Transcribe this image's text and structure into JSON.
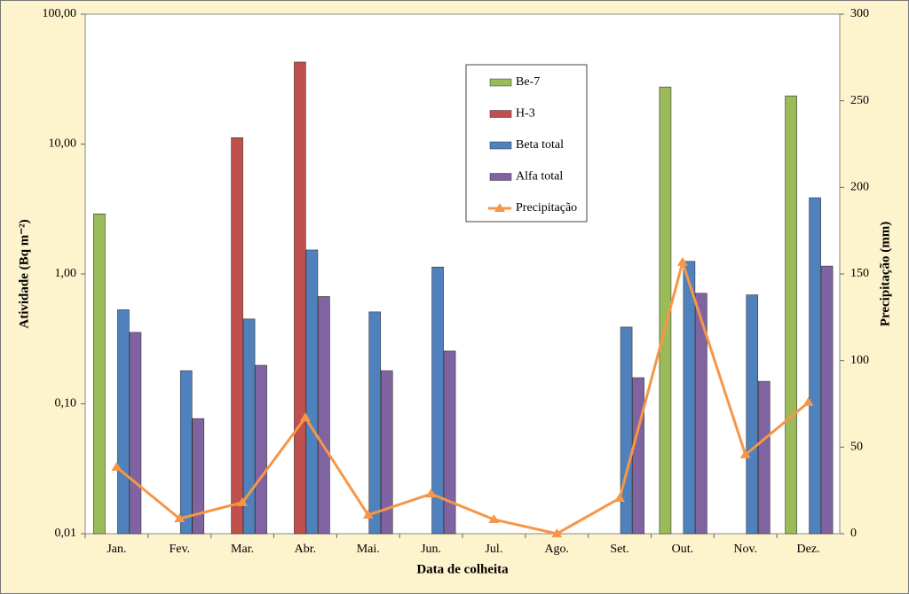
{
  "chart_data": {
    "type": "bar",
    "x_label": "Data de colheita",
    "y_label": "Atividade (Bq m⁻²)",
    "y2_label": "Precipitação (mm)",
    "log_y": true,
    "categories": [
      "Jan.",
      "Fev.",
      "Mar.",
      "Abr.",
      "Mai.",
      "Jun.",
      "Jul.",
      "Ago.",
      "Set.",
      "Out.",
      "Nov.",
      "Dez."
    ],
    "series": [
      {
        "name": "Be-7",
        "color": "#9bbb59",
        "values": [
          2.9,
          null,
          null,
          null,
          null,
          null,
          null,
          null,
          null,
          27.5,
          null,
          23.5
        ]
      },
      {
        "name": "H-3",
        "color": "#c0504d",
        "values": [
          null,
          null,
          11.2,
          42.8,
          null,
          null,
          null,
          null,
          null,
          null,
          null,
          null
        ]
      },
      {
        "name": "Beta total",
        "color": "#4f81bd",
        "values": [
          0.53,
          0.18,
          0.45,
          1.53,
          0.51,
          1.13,
          null,
          null,
          0.39,
          1.25,
          0.69,
          3.86
        ]
      },
      {
        "name": "Alfa total",
        "color": "#8064a2",
        "values": [
          0.355,
          0.077,
          0.198,
          0.67,
          0.18,
          0.255,
          null,
          null,
          0.159,
          0.71,
          0.149,
          1.15
        ]
      },
      {
        "name": "Precipitação",
        "color": "#f79646",
        "type": "line",
        "axis": "y2",
        "values": [
          38.4,
          8.7,
          18,
          67,
          10.8,
          23,
          8.2,
          0,
          20.5,
          156.7,
          45.6,
          75.8
        ]
      }
    ],
    "ylim": [
      0.01,
      100
    ],
    "yticks": [
      {
        "value": 0.01,
        "label": "0,01"
      },
      {
        "value": 0.1,
        "label": "0,10"
      },
      {
        "value": 1,
        "label": "1,00"
      },
      {
        "value": 10,
        "label": "10,00"
      },
      {
        "value": 100,
        "label": "100,00"
      }
    ],
    "y2lim": [
      0,
      300
    ],
    "y2ticks": [
      0,
      50,
      100,
      150,
      200,
      250,
      300
    ]
  }
}
